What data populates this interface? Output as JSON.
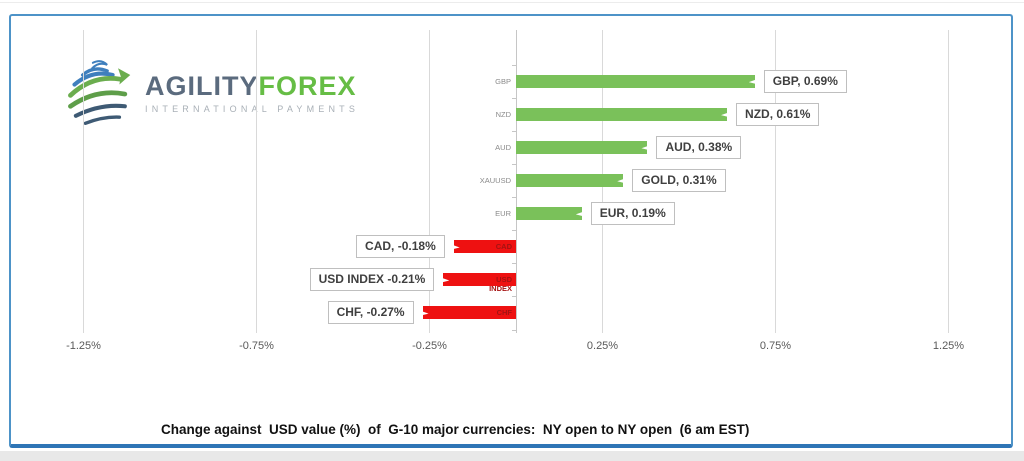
{
  "logo": {
    "brand_primary": "AGILITY",
    "brand_secondary": "FOREX",
    "tagline": "INTERNATIONAL PAYMENTS"
  },
  "caption": {
    "text": "Change against  USD value (%)  of  G-10 major currencies:  NY open to NY open  (6 am EST)"
  },
  "colors": {
    "positive": "#7ac15a",
    "negative": "#ee1111",
    "negative_inner_label": "#a51212",
    "border_blue": "#4d93c8",
    "border_blue_dark": "#2e75b6",
    "gridline": "#d9d9d9",
    "axis": "#c6c6c6",
    "tick_text": "#595959",
    "category_text": "#8a8a8a",
    "data_label_text": "#3f3f3f",
    "logo_blue": "#3f7fbd",
    "logo_green": "#6bad4e",
    "logo_slate": "#3e5a74"
  },
  "chart_data": {
    "type": "bar",
    "orientation": "horizontal",
    "title": "Change against  USD value (%)  of  G-10 major currencies:  NY open to NY open  (6 am EST)",
    "categories": [
      "GBP",
      "NZD",
      "AUD",
      "XAUUSD",
      "EUR",
      "CAD",
      "USD INDEX",
      "CHF"
    ],
    "values": [
      0.69,
      0.61,
      0.38,
      0.31,
      0.19,
      -0.18,
      -0.21,
      -0.27
    ],
    "data_labels": [
      "GBP, 0.69%",
      "NZD, 0.61%",
      "AUD, 0.38%",
      "GOLD, 0.31%",
      "EUR, 0.19%",
      "CAD, -0.18%",
      "USD INDEX -0.21%",
      "CHF, -0.27%"
    ],
    "series_colors_rule": "positive bars green, negative bars red",
    "x_ticks": [
      -1.25,
      -0.75,
      -0.25,
      0.25,
      0.75,
      1.25
    ],
    "x_tick_labels": [
      "-1.25%",
      "-0.75%",
      "-0.25%",
      "0.25%",
      "0.75%",
      "1.25%"
    ],
    "xlim": [
      -1.47,
      1.45
    ],
    "grid": "vertical",
    "legend": "none",
    "value_axis_format": "percent"
  }
}
